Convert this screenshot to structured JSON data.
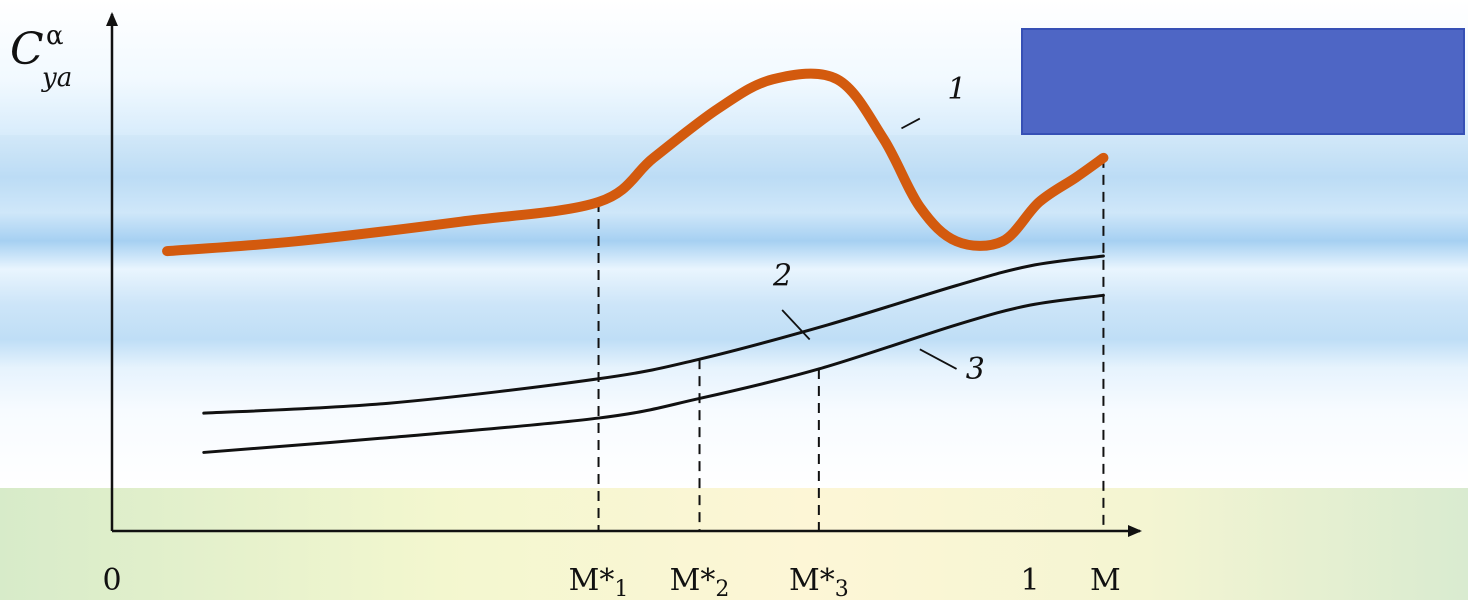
{
  "chart_data": {
    "type": "line",
    "ylabel": {
      "main": "C",
      "sub": "ya",
      "sup": "α"
    },
    "xlabel": "M",
    "x_ticks": [
      {
        "x": 0,
        "label": "0",
        "name": "tick-0"
      },
      {
        "x": 0.53,
        "label": "M*1",
        "name": "tick-m1",
        "base": "M*",
        "sub": "1"
      },
      {
        "x": 0.64,
        "label": "M*2",
        "name": "tick-m2",
        "base": "M*",
        "sub": "2"
      },
      {
        "x": 0.77,
        "label": "M*3",
        "name": "tick-m3",
        "base": "M*",
        "sub": "3"
      },
      {
        "x": 1,
        "label": "1",
        "name": "tick-1"
      }
    ],
    "xlim": [
      0,
      1.16
    ],
    "ylim": [
      0,
      1
    ],
    "series": [
      {
        "name": "1",
        "color": "#d35a0e",
        "points": [
          [
            0.06,
            0.57
          ],
          [
            0.2,
            0.59
          ],
          [
            0.38,
            0.63
          ],
          [
            0.53,
            0.67
          ],
          [
            0.59,
            0.76
          ],
          [
            0.66,
            0.86
          ],
          [
            0.72,
            0.92
          ],
          [
            0.79,
            0.92
          ],
          [
            0.84,
            0.8
          ],
          [
            0.88,
            0.66
          ],
          [
            0.92,
            0.59
          ],
          [
            0.97,
            0.59
          ],
          [
            1.01,
            0.67
          ],
          [
            1.05,
            0.72
          ],
          [
            1.08,
            0.76
          ]
        ]
      },
      {
        "name": "2",
        "color": "#111111",
        "points": [
          [
            0.1,
            0.24
          ],
          [
            0.3,
            0.26
          ],
          [
            0.53,
            0.31
          ],
          [
            0.64,
            0.35
          ],
          [
            0.78,
            0.42
          ],
          [
            0.92,
            0.5
          ],
          [
            1.0,
            0.54
          ],
          [
            1.08,
            0.56
          ]
        ]
      },
      {
        "name": "3",
        "color": "#111111",
        "points": [
          [
            0.1,
            0.16
          ],
          [
            0.3,
            0.19
          ],
          [
            0.53,
            0.23
          ],
          [
            0.64,
            0.27
          ],
          [
            0.77,
            0.33
          ],
          [
            0.92,
            0.42
          ],
          [
            1.0,
            0.46
          ],
          [
            1.08,
            0.48
          ]
        ]
      }
    ],
    "curve_labels": [
      {
        "text": "1",
        "x": 0.91,
        "y": 0.88,
        "leader": [
          [
            0.88,
            0.84
          ],
          [
            0.86,
            0.82
          ]
        ]
      },
      {
        "text": "2",
        "x": 0.72,
        "y": 0.5,
        "leader": [
          [
            0.73,
            0.45
          ],
          [
            0.76,
            0.39
          ]
        ]
      },
      {
        "text": "3",
        "x": 0.93,
        "y": 0.31,
        "leader": [
          [
            0.92,
            0.33
          ],
          [
            0.88,
            0.37
          ]
        ]
      }
    ],
    "dashed_verticals": [
      {
        "x": 0.53,
        "to_series": "1",
        "y": 0.67
      },
      {
        "x": 0.64,
        "to_series": "2",
        "y": 0.35
      },
      {
        "x": 0.77,
        "to_series": "3",
        "y": 0.33
      },
      {
        "x": 1.08,
        "to_series": "1",
        "y": 0.76
      }
    ],
    "legend_box_color": "#4e66c5"
  }
}
